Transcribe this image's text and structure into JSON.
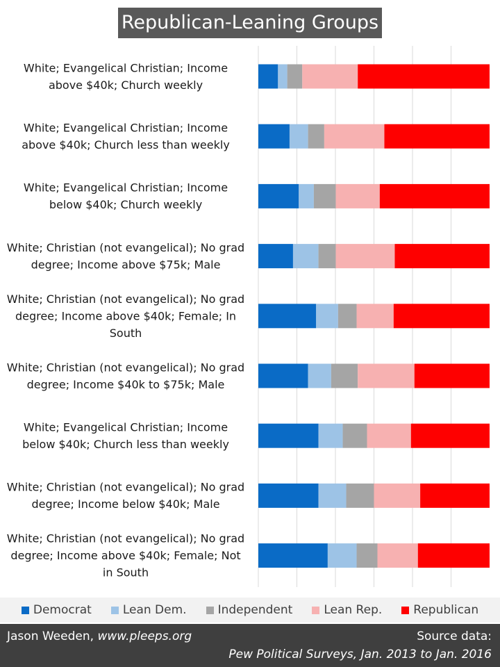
{
  "chart_data": {
    "type": "bar",
    "orientation": "horizontal",
    "stacked": true,
    "normalized_to": 100,
    "title": "Republican-Leaning Groups",
    "xlim": [
      0,
      100
    ],
    "grid": true,
    "legend_position": "bottom",
    "categories": [
      [
        "White; Evangelical Christian; Income",
        "above $40k; Church weekly"
      ],
      [
        "White; Evangelical Christian; Income",
        "above $40k; Church less than weekly"
      ],
      [
        "White; Evangelical Christian; Income",
        "below $40k; Church weekly"
      ],
      [
        "White; Christian (not evangelical); No grad",
        "degree; Income above $75k; Male"
      ],
      [
        "White; Christian (not evangelical); No grad",
        "degree; Income above $40k; Female; In",
        "South"
      ],
      [
        "White; Christian (not evangelical); No grad",
        "degree; Income $40k to $75k; Male"
      ],
      [
        "White; Evangelical Christian; Income",
        "below $40k; Church less than weekly"
      ],
      [
        "White; Christian (not evangelical); No grad",
        "degree; Income below $40k; Male"
      ],
      [
        "White; Christian (not evangelical); No grad",
        "degree; Income above $40k; Female; Not",
        "in South"
      ]
    ],
    "series": [
      {
        "name": "Democrat",
        "color": "#0a6bc6",
        "values": [
          8.5,
          13.5,
          17.5,
          15,
          25,
          21.5,
          26,
          26,
          30
        ]
      },
      {
        "name": "Lean Dem.",
        "color": "#9dc3e6",
        "values": [
          4,
          8,
          6.5,
          11,
          9.5,
          10,
          10.5,
          12,
          12.5
        ]
      },
      {
        "name": "Independent",
        "color": "#a5a5a5",
        "values": [
          6.5,
          7,
          9.5,
          7.5,
          8,
          11.5,
          10.5,
          12,
          9
        ]
      },
      {
        "name": "Lean Rep.",
        "color": "#f7b1b1",
        "values": [
          24,
          26,
          19,
          25.5,
          16,
          24.5,
          19,
          20,
          17.5
        ]
      },
      {
        "name": "Republican",
        "color": "#fe0000",
        "values": [
          57,
          45.5,
          47.5,
          41,
          41.5,
          32.5,
          34,
          30,
          31
        ]
      }
    ]
  },
  "footer": {
    "author_name": "Jason Weeden,",
    "author_site": "www.pleeps.org",
    "source_label": "Source data:",
    "source_text": "Pew  Political Surveys, Jan. 2013 to Jan. 2016"
  }
}
